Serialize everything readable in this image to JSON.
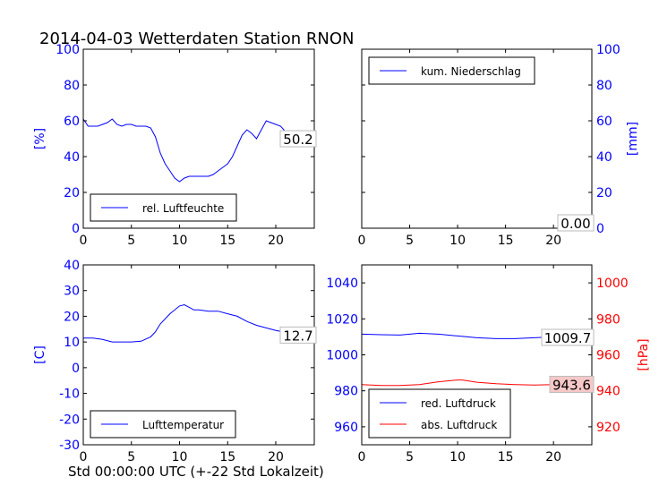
{
  "title": "2014-04-03 Wetterdaten Station RNON",
  "xlabel": "Std 00:00:00 UTC (+-22 Std Lokalzeit)",
  "colors": {
    "blue": "#0000ff",
    "red": "#ff0000",
    "black": "#000000"
  },
  "chart_data": [
    {
      "type": "line",
      "id": "humidity",
      "ylabel": "[%]",
      "xlim": [
        0,
        24
      ],
      "ylim": [
        0,
        100
      ],
      "xticks": [
        0,
        5,
        10,
        15,
        20
      ],
      "yticks": [
        0,
        20,
        40,
        60,
        80,
        100
      ],
      "grid": false,
      "legend_position": "lower-left",
      "series": [
        {
          "name": "rel. Luftfeuchte",
          "color": "#0000ff",
          "x": [
            0,
            0.5,
            1,
            1.5,
            2,
            2.5,
            3,
            3.5,
            4,
            4.5,
            5,
            5.5,
            6,
            6.5,
            7,
            7.5,
            8,
            8.5,
            9,
            9.5,
            10,
            10.5,
            11,
            11.5,
            12,
            12.5,
            13,
            13.5,
            14,
            14.5,
            15,
            15.5,
            16,
            16.5,
            17,
            17.5,
            18,
            18.5,
            19,
            19.5,
            20,
            20.5,
            21,
            21.5,
            22,
            22.5,
            23,
            23.5,
            24
          ],
          "y": [
            61,
            57,
            57,
            57,
            58,
            59,
            61,
            58,
            57,
            58,
            58,
            57,
            57,
            57,
            56,
            51,
            42,
            36,
            32,
            28,
            26,
            28,
            29,
            29,
            29,
            29,
            29,
            30,
            32,
            34,
            36,
            40,
            46,
            52,
            55,
            53,
            50,
            55,
            60,
            59,
            58,
            57,
            54,
            52,
            52,
            50,
            50,
            50,
            50
          ]
        }
      ],
      "end_label": "50.2"
    },
    {
      "type": "line",
      "id": "precip",
      "ylabel": "[mm]",
      "xlim": [
        0,
        24
      ],
      "ylim": [
        0,
        100
      ],
      "xticks": [
        0,
        5,
        10,
        15,
        20
      ],
      "yticks": [
        0,
        20,
        40,
        60,
        80,
        100
      ],
      "grid": false,
      "legend_position": "upper-left",
      "series": [
        {
          "name": "kum. Niederschlag",
          "color": "#0000ff",
          "x": [
            0,
            24
          ],
          "y": [
            0,
            0
          ]
        }
      ],
      "end_label": "0.00"
    },
    {
      "type": "line",
      "id": "temperature",
      "ylabel": "[C]",
      "xlim": [
        0,
        24
      ],
      "ylim": [
        -30,
        40
      ],
      "xticks": [
        0,
        5,
        10,
        15,
        20
      ],
      "yticks": [
        -30,
        -20,
        -10,
        0,
        10,
        20,
        30,
        40
      ],
      "grid": false,
      "legend_position": "lower-left",
      "series": [
        {
          "name": "Lufttemperatur",
          "color": "#0000ff",
          "x": [
            0,
            1,
            2,
            3,
            4,
            5,
            6,
            7,
            7.5,
            8,
            9,
            10,
            10.5,
            11,
            11.5,
            12,
            13,
            14,
            15,
            16,
            17,
            18,
            19,
            20,
            21,
            22,
            23,
            24
          ],
          "y": [
            11.5,
            11.5,
            11,
            10,
            10,
            10,
            10.3,
            12,
            14,
            17,
            21,
            24,
            24.5,
            23.5,
            22.5,
            22.5,
            22,
            22,
            21,
            20,
            18,
            16.5,
            15.5,
            14.5,
            13.8,
            13,
            12.8,
            12.7
          ]
        }
      ],
      "end_label": "12.7"
    },
    {
      "type": "line",
      "id": "pressure",
      "ylabel": "[hPa]",
      "xlim": [
        0,
        24
      ],
      "ylim": [
        950,
        1050
      ],
      "y2lim": [
        910,
        1010
      ],
      "xticks": [
        0,
        5,
        10,
        15,
        20
      ],
      "yticks": [
        960,
        980,
        1000,
        1020,
        1040
      ],
      "y2ticks": [
        920,
        940,
        960,
        980,
        1000
      ],
      "grid": false,
      "legend_position": "lower-left",
      "series": [
        {
          "name": "red. Luftdruck",
          "color": "#0000ff",
          "axis": "left",
          "x": [
            0,
            2,
            4,
            6,
            8,
            10,
            12,
            14,
            16,
            18,
            20,
            22,
            24
          ],
          "y": [
            1011.5,
            1011.2,
            1011,
            1012,
            1011.5,
            1010.5,
            1009.5,
            1009,
            1009,
            1009.5,
            1010,
            1010,
            1009.7
          ]
        },
        {
          "name": "abs. Luftdruck",
          "color": "#ff0000",
          "axis": "right",
          "x": [
            0,
            2,
            4,
            6,
            8,
            10,
            10.5,
            12,
            14,
            16,
            18,
            20,
            22,
            24
          ],
          "y": [
            943.5,
            943,
            943,
            943.5,
            945,
            946,
            946,
            944.8,
            944,
            943.5,
            943.2,
            943.5,
            943.5,
            943.6
          ]
        }
      ],
      "end_labels": [
        "1009.7",
        "943.6"
      ]
    }
  ]
}
